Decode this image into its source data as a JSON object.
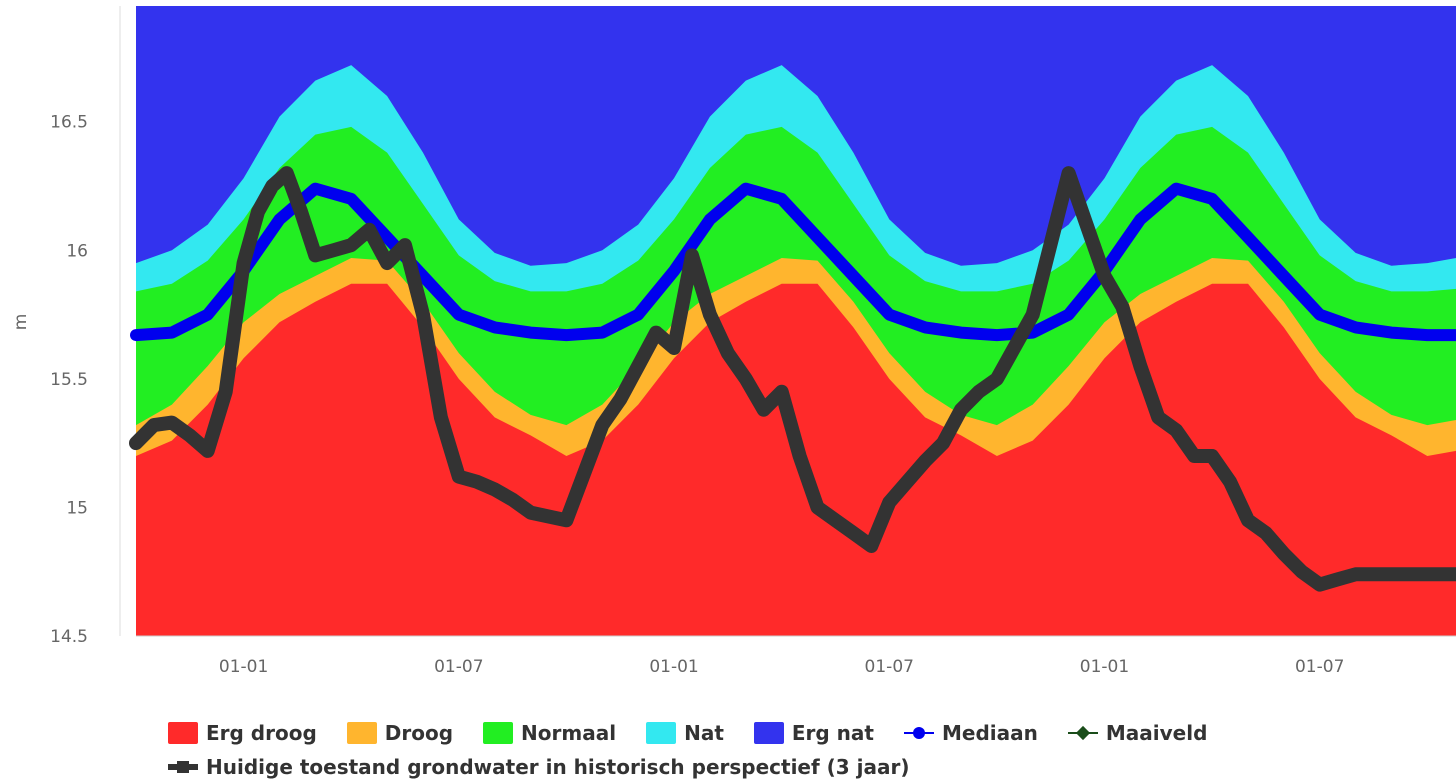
{
  "chart_data": {
    "type": "area",
    "ylabel": "m",
    "ylim": [
      14.5,
      16.95
    ],
    "yticks": [
      "14.5",
      "15",
      "15.5",
      "16",
      "16.5"
    ],
    "x_ticks": [
      {
        "label": "01-01",
        "month": 3
      },
      {
        "label": "01-07",
        "month": 9
      },
      {
        "label": "01-01",
        "month": 15
      },
      {
        "label": "01-07",
        "month": 21
      },
      {
        "label": "01-01",
        "month": 27
      },
      {
        "label": "01-07",
        "month": 33
      }
    ],
    "band_series": [
      {
        "name": "Erg droog",
        "color": "#ff2a2a",
        "x": [
          0,
          1,
          2,
          3,
          4,
          5,
          6,
          7,
          8,
          9,
          10,
          11,
          12,
          13,
          14,
          15,
          16,
          17,
          18,
          19,
          20,
          21,
          22,
          23,
          24,
          25,
          26,
          27,
          28,
          29,
          30,
          31,
          32,
          33,
          34,
          35,
          36,
          36.8
        ],
        "y": [
          15.2,
          15.26,
          15.4,
          15.58,
          15.72,
          15.8,
          15.87,
          15.87,
          15.7,
          15.5,
          15.35,
          15.28,
          15.2,
          15.26,
          15.4,
          15.58,
          15.72,
          15.8,
          15.87,
          15.87,
          15.7,
          15.5,
          15.35,
          15.28,
          15.2,
          15.26,
          15.4,
          15.58,
          15.72,
          15.8,
          15.87,
          15.87,
          15.7,
          15.5,
          15.35,
          15.28,
          15.2,
          15.22
        ]
      },
      {
        "name": "Droog",
        "color": "#ffb52e",
        "x": [
          0,
          1,
          2,
          3,
          4,
          5,
          6,
          7,
          8,
          9,
          10,
          11,
          12,
          13,
          14,
          15,
          16,
          17,
          18,
          19,
          20,
          21,
          22,
          23,
          24,
          25,
          26,
          27,
          28,
          29,
          30,
          31,
          32,
          33,
          34,
          35,
          36,
          36.8
        ],
        "y": [
          15.32,
          15.4,
          15.55,
          15.72,
          15.83,
          15.9,
          15.97,
          15.96,
          15.8,
          15.6,
          15.45,
          15.36,
          15.32,
          15.4,
          15.55,
          15.72,
          15.83,
          15.9,
          15.97,
          15.96,
          15.8,
          15.6,
          15.45,
          15.36,
          15.32,
          15.4,
          15.55,
          15.72,
          15.83,
          15.9,
          15.97,
          15.96,
          15.8,
          15.6,
          15.45,
          15.36,
          15.32,
          15.34
        ]
      },
      {
        "name": "Normaal",
        "color": "#22ee22",
        "x": [
          0,
          1,
          2,
          3,
          4,
          5,
          6,
          7,
          8,
          9,
          10,
          11,
          12,
          13,
          14,
          15,
          16,
          17,
          18,
          19,
          20,
          21,
          22,
          23,
          24,
          25,
          26,
          27,
          28,
          29,
          30,
          31,
          32,
          33,
          34,
          35,
          36,
          36.8
        ],
        "y": [
          15.84,
          15.87,
          15.96,
          16.12,
          16.32,
          16.45,
          16.48,
          16.38,
          16.18,
          15.98,
          15.88,
          15.84,
          15.84,
          15.87,
          15.96,
          16.12,
          16.32,
          16.45,
          16.48,
          16.38,
          16.18,
          15.98,
          15.88,
          15.84,
          15.84,
          15.87,
          15.96,
          16.12,
          16.32,
          16.45,
          16.48,
          16.38,
          16.18,
          15.98,
          15.88,
          15.84,
          15.84,
          15.85
        ]
      },
      {
        "name": "Nat",
        "color": "#33e8f0",
        "x": [
          0,
          1,
          2,
          3,
          4,
          5,
          6,
          7,
          8,
          9,
          10,
          11,
          12,
          13,
          14,
          15,
          16,
          17,
          18,
          19,
          20,
          21,
          22,
          23,
          24,
          25,
          26,
          27,
          28,
          29,
          30,
          31,
          32,
          33,
          34,
          35,
          36,
          36.8
        ],
        "y": [
          15.95,
          16.0,
          16.1,
          16.28,
          16.52,
          16.66,
          16.72,
          16.6,
          16.38,
          16.12,
          15.99,
          15.94,
          15.95,
          16.0,
          16.1,
          16.28,
          16.52,
          16.66,
          16.72,
          16.6,
          16.38,
          16.12,
          15.99,
          15.94,
          15.95,
          16.0,
          16.1,
          16.28,
          16.52,
          16.66,
          16.72,
          16.6,
          16.38,
          16.12,
          15.99,
          15.94,
          15.95,
          15.97
        ]
      },
      {
        "name": "Erg nat",
        "color": "#3333ee",
        "top": 16.95
      }
    ],
    "line_series": [
      {
        "name": "Mediaan",
        "color": "#0000ee",
        "x": [
          0,
          1,
          2,
          3,
          4,
          5,
          6,
          7,
          8,
          9,
          10,
          11,
          12,
          13,
          14,
          15,
          16,
          17,
          18,
          19,
          20,
          21,
          22,
          23,
          24,
          25,
          26,
          27,
          28,
          29,
          30,
          31,
          32,
          33,
          34,
          35,
          36,
          36.8
        ],
        "y": [
          15.67,
          15.68,
          15.75,
          15.92,
          16.12,
          16.24,
          16.2,
          16.05,
          15.9,
          15.75,
          15.7,
          15.68,
          15.67,
          15.68,
          15.75,
          15.92,
          16.12,
          16.24,
          16.2,
          16.05,
          15.9,
          15.75,
          15.7,
          15.68,
          15.67,
          15.68,
          15.75,
          15.92,
          16.12,
          16.24,
          16.2,
          16.05,
          15.9,
          15.75,
          15.7,
          15.68,
          15.67,
          15.67
        ]
      },
      {
        "name": "Huidige toestand grondwater in historisch perspectief (3 jaar)",
        "color": "#333333",
        "x": [
          0,
          0.5,
          1,
          1.5,
          2,
          2.5,
          3,
          3.4,
          3.8,
          4.2,
          4.6,
          5,
          5.5,
          6,
          6.5,
          7,
          7.5,
          8,
          8.5,
          9,
          9.5,
          10,
          10.5,
          11,
          12,
          13,
          13.5,
          14,
          14.5,
          15,
          15.5,
          16,
          16.5,
          17,
          17.5,
          18,
          18.5,
          19,
          19.5,
          20,
          20.5,
          21,
          21.5,
          22,
          22.5,
          23,
          23.5,
          24,
          25,
          26,
          26.5,
          27,
          27.5,
          28,
          28.5,
          29,
          29.5,
          30,
          30.5,
          31,
          31.5,
          32,
          32.5,
          33,
          33.5,
          34,
          34.5,
          35,
          35.5,
          36,
          36.5,
          36.8
        ],
        "y": [
          15.25,
          15.32,
          15.33,
          15.28,
          15.22,
          15.45,
          15.95,
          16.15,
          16.25,
          16.3,
          16.15,
          15.98,
          16.0,
          16.02,
          16.08,
          15.95,
          16.02,
          15.75,
          15.35,
          15.12,
          15.1,
          15.07,
          15.03,
          14.98,
          14.95,
          15.32,
          15.42,
          15.55,
          15.68,
          15.62,
          15.98,
          15.75,
          15.6,
          15.5,
          15.38,
          15.45,
          15.2,
          15.0,
          14.95,
          14.9,
          14.85,
          15.02,
          15.1,
          15.18,
          15.25,
          15.38,
          15.45,
          15.5,
          15.75,
          16.3,
          16.1,
          15.9,
          15.78,
          15.55,
          15.35,
          15.3,
          15.2,
          15.2,
          15.1,
          14.95,
          14.9,
          14.82,
          14.75,
          14.7,
          14.72,
          14.74,
          14.74,
          14.74,
          14.74,
          14.74,
          14.74,
          14.74
        ]
      }
    ],
    "legend": {
      "items": [
        {
          "name": "Erg droog",
          "symbol": "swatch",
          "color": "#ff2a2a"
        },
        {
          "name": "Droog",
          "symbol": "swatch",
          "color": "#ffb52e"
        },
        {
          "name": "Normaal",
          "symbol": "swatch",
          "color": "#22ee22"
        },
        {
          "name": "Nat",
          "symbol": "swatch",
          "color": "#33e8f0"
        },
        {
          "name": "Erg nat",
          "symbol": "swatch",
          "color": "#3333ee"
        },
        {
          "name": "Mediaan",
          "symbol": "line-dot",
          "color": "#0000ee"
        },
        {
          "name": "Maaiveld",
          "symbol": "line-diamond",
          "color": "#1a4d1a"
        }
      ],
      "second_row": {
        "name": "Huidige toestand grondwater in historisch perspectief (3 jaar)",
        "symbol": "line-square",
        "color": "#333333"
      }
    }
  }
}
